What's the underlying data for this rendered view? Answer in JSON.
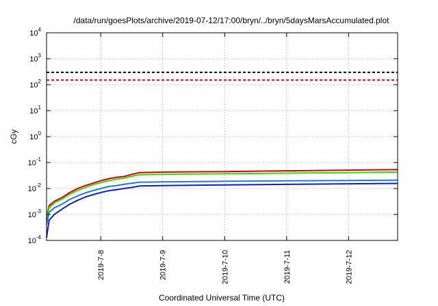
{
  "chart_data": {
    "type": "line",
    "title": "/data/run/goesPlots/archive/2019-07-12/17:00/bryn/../bryn/5daysMarsAccumulated.plot",
    "xlabel": "Coordinated Universal Time (UTC)",
    "ylabel": "cGy",
    "y_scale": "log",
    "ylim": [
      0.0001,
      10000
    ],
    "xlim": [
      "2019-07-07 03:00",
      "2019-07-12 19:00"
    ],
    "grid": true,
    "y_ticks": [
      {
        "base": "10",
        "exp": "-4",
        "value": 0.0001
      },
      {
        "base": "10",
        "exp": "-3",
        "value": 0.001
      },
      {
        "base": "10",
        "exp": "-2",
        "value": 0.01
      },
      {
        "base": "10",
        "exp": "-1",
        "value": 0.1
      },
      {
        "base": "10",
        "exp": "0",
        "value": 1
      },
      {
        "base": "10",
        "exp": "1",
        "value": 10
      },
      {
        "base": "10",
        "exp": "2",
        "value": 100
      },
      {
        "base": "10",
        "exp": "3",
        "value": 1000
      },
      {
        "base": "10",
        "exp": "4",
        "value": 10000
      }
    ],
    "x_ticks": [
      {
        "label": "2019-7-8",
        "value": "2019-07-08 00:00"
      },
      {
        "label": "2019-7-9",
        "value": "2019-07-09 00:00"
      },
      {
        "label": "2019-7-10",
        "value": "2019-07-10 00:00"
      },
      {
        "label": "2019-7-11",
        "value": "2019-07-11 00:00"
      },
      {
        "label": "2019-7-12",
        "value": "2019-07-12 00:00"
      }
    ],
    "reference_lines": [
      {
        "value": 300,
        "color": "#000000",
        "style": "dashed"
      },
      {
        "value": 150,
        "color": "#e00000",
        "style": "dashed"
      }
    ],
    "series": [
      {
        "color": "#d40000",
        "points": [
          [
            "2019-07-07 03:00",
            0.0007
          ],
          [
            "2019-07-07 04:00",
            0.0022
          ],
          [
            "2019-07-07 06:00",
            0.0032
          ],
          [
            "2019-07-07 09:00",
            0.0045
          ],
          [
            "2019-07-07 12:00",
            0.007
          ],
          [
            "2019-07-07 15:00",
            0.01
          ],
          [
            "2019-07-07 18:00",
            0.013
          ],
          [
            "2019-07-07 21:00",
            0.016
          ],
          [
            "2019-07-08 00:00",
            0.02
          ],
          [
            "2019-07-08 03:00",
            0.024
          ],
          [
            "2019-07-08 06:00",
            0.027
          ],
          [
            "2019-07-08 09:00",
            0.029
          ],
          [
            "2019-07-08 12:00",
            0.035
          ],
          [
            "2019-07-08 15:00",
            0.041
          ],
          [
            "2019-07-09 00:00",
            0.043
          ],
          [
            "2019-07-10 00:00",
            0.045
          ],
          [
            "2019-07-11 00:00",
            0.048
          ],
          [
            "2019-07-12 00:00",
            0.051
          ],
          [
            "2019-07-12 19:00",
            0.054
          ]
        ]
      },
      {
        "color": "#33dd00",
        "points": [
          [
            "2019-07-07 03:00",
            0.0006
          ],
          [
            "2019-07-07 04:00",
            0.0018
          ],
          [
            "2019-07-07 06:00",
            0.0028
          ],
          [
            "2019-07-07 09:00",
            0.004
          ],
          [
            "2019-07-07 12:00",
            0.006
          ],
          [
            "2019-07-07 15:00",
            0.0085
          ],
          [
            "2019-07-07 18:00",
            0.011
          ],
          [
            "2019-07-07 21:00",
            0.014
          ],
          [
            "2019-07-08 00:00",
            0.017
          ],
          [
            "2019-07-08 03:00",
            0.02
          ],
          [
            "2019-07-08 06:00",
            0.023
          ],
          [
            "2019-07-08 09:00",
            0.025
          ],
          [
            "2019-07-08 12:00",
            0.03
          ],
          [
            "2019-07-08 15:00",
            0.034
          ],
          [
            "2019-07-09 00:00",
            0.035
          ],
          [
            "2019-07-10 00:00",
            0.037
          ],
          [
            "2019-07-11 00:00",
            0.039
          ],
          [
            "2019-07-12 00:00",
            0.041
          ],
          [
            "2019-07-12 19:00",
            0.043
          ]
        ]
      },
      {
        "color": "#2277dd",
        "points": [
          [
            "2019-07-07 03:00",
            0.0004
          ],
          [
            "2019-07-07 04:00",
            0.0012
          ],
          [
            "2019-07-07 06:00",
            0.0018
          ],
          [
            "2019-07-07 09:00",
            0.0025
          ],
          [
            "2019-07-07 12:00",
            0.0038
          ],
          [
            "2019-07-07 15:00",
            0.0052
          ],
          [
            "2019-07-07 18:00",
            0.0068
          ],
          [
            "2019-07-07 21:00",
            0.0083
          ],
          [
            "2019-07-08 00:00",
            0.01
          ],
          [
            "2019-07-08 03:00",
            0.012
          ],
          [
            "2019-07-08 06:00",
            0.013
          ],
          [
            "2019-07-08 09:00",
            0.0145
          ],
          [
            "2019-07-08 12:00",
            0.016
          ],
          [
            "2019-07-08 15:00",
            0.0175
          ],
          [
            "2019-07-09 00:00",
            0.018
          ],
          [
            "2019-07-10 00:00",
            0.019
          ],
          [
            "2019-07-11 00:00",
            0.0198
          ],
          [
            "2019-07-12 00:00",
            0.0205
          ],
          [
            "2019-07-12 19:00",
            0.021
          ]
        ]
      },
      {
        "color": "#0a1ecc",
        "points": [
          [
            "2019-07-07 03:00",
            0.00013
          ],
          [
            "2019-07-07 04:00",
            0.0006
          ],
          [
            "2019-07-07 06:00",
            0.001
          ],
          [
            "2019-07-07 09:00",
            0.0016
          ],
          [
            "2019-07-07 12:00",
            0.0025
          ],
          [
            "2019-07-07 15:00",
            0.0035
          ],
          [
            "2019-07-07 18:00",
            0.0047
          ],
          [
            "2019-07-07 21:00",
            0.0058
          ],
          [
            "2019-07-08 00:00",
            0.007
          ],
          [
            "2019-07-08 03:00",
            0.0082
          ],
          [
            "2019-07-08 06:00",
            0.009
          ],
          [
            "2019-07-08 09:00",
            0.01
          ],
          [
            "2019-07-08 12:00",
            0.011
          ],
          [
            "2019-07-08 15:00",
            0.0125
          ],
          [
            "2019-07-09 00:00",
            0.013
          ],
          [
            "2019-07-10 00:00",
            0.0138
          ],
          [
            "2019-07-11 00:00",
            0.0145
          ],
          [
            "2019-07-12 00:00",
            0.0152
          ],
          [
            "2019-07-12 19:00",
            0.0158
          ]
        ]
      }
    ]
  }
}
